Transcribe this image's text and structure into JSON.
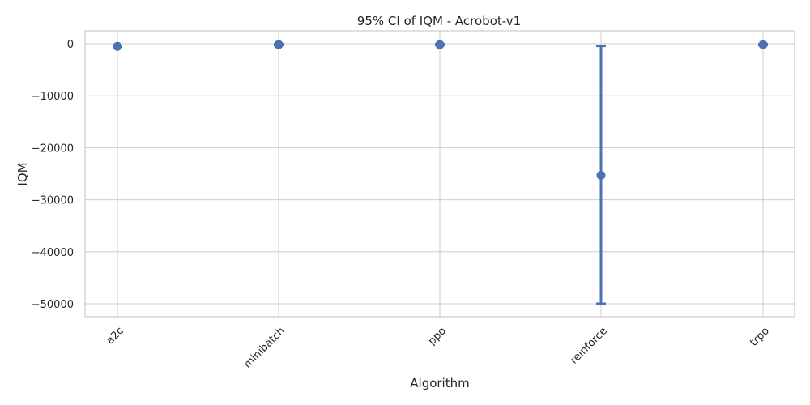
{
  "chart_data": {
    "type": "scatter",
    "title": "95% CI of IQM - Acrobot-v1",
    "xlabel": "Algorithm",
    "ylabel": "IQM",
    "categories": [
      "a2c",
      "minibatch",
      "ppo",
      "reinforce",
      "trpo"
    ],
    "series": [
      {
        "values": [
          -500,
          -160,
          -160,
          -25300,
          -160
        ],
        "ci_low": [
          -600,
          -250,
          -250,
          -50000,
          -250
        ],
        "ci_high": [
          -400,
          -70,
          -70,
          -400,
          -70
        ]
      }
    ],
    "yticks": [
      0,
      -10000,
      -20000,
      -30000,
      -40000,
      -50000
    ],
    "ytick_labels": [
      "0",
      "−10000",
      "−20000",
      "−30000",
      "−40000",
      "−50000"
    ],
    "ylim": [
      -52500,
      2500
    ],
    "grid": true,
    "color": "#4c72b0"
  }
}
